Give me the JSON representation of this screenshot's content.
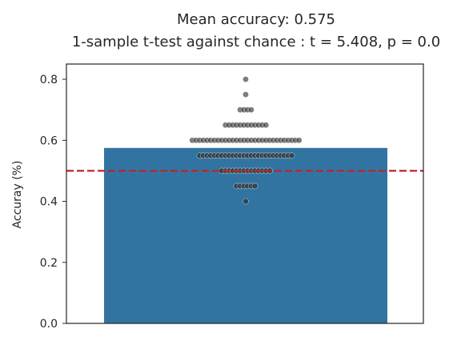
{
  "chart_data": {
    "type": "bar",
    "title": "Mean accuracy: 0.575",
    "subtitle": "1-sample t-test against chance : t = 5.408, p = 0.0",
    "xlabel": "",
    "ylabel": "Accuray (%)",
    "ylim": [
      0.0,
      0.85
    ],
    "yticks": [
      {
        "value": 0.0,
        "label": "0.0"
      },
      {
        "value": 0.2,
        "label": "0.2"
      },
      {
        "value": 0.4,
        "label": "0.4"
      },
      {
        "value": 0.6,
        "label": "0.6"
      },
      {
        "value": 0.8,
        "label": "0.8"
      }
    ],
    "grid": false,
    "legend": false,
    "bar": {
      "value": 0.575,
      "color": "#3274a1"
    },
    "chance_line": {
      "value": 0.5,
      "color": "#c0222b",
      "style": "dashed"
    },
    "points_color": "#262626",
    "points": [
      {
        "value": 0.8,
        "count": 1
      },
      {
        "value": 0.75,
        "count": 1
      },
      {
        "value": 0.7,
        "count": 4
      },
      {
        "value": 0.65,
        "count": 12
      },
      {
        "value": 0.6,
        "count": 30
      },
      {
        "value": 0.55,
        "count": 26
      },
      {
        "value": 0.5,
        "count": 14
      },
      {
        "value": 0.45,
        "count": 6
      },
      {
        "value": 0.4,
        "count": 1
      }
    ]
  }
}
